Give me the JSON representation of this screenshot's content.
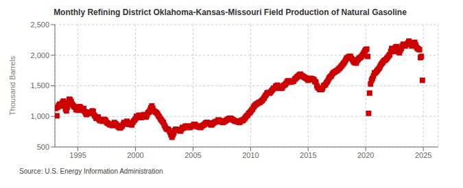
{
  "chart_data": {
    "type": "scatter",
    "title": "Monthly Refining District Oklahoma-Kansas-Missouri Field Production of Natural Gasoline",
    "y_label": "Thousand Barrels",
    "annotations": [
      "Source: U.S. Energy Information Administration"
    ],
    "color": "#cc0000",
    "marker": "square",
    "grid": true,
    "xlim": [
      1993.0,
      2026.3
    ],
    "xticks": [
      1995,
      2000,
      2005,
      2010,
      2015,
      2020,
      2025
    ],
    "ylim": [
      500,
      2500
    ],
    "yticks": [
      500,
      {
        "value": 1000,
        "label": "1,000"
      },
      {
        "value": 1500,
        "label": "1,500"
      },
      {
        "value": 2000,
        "label": "2,000"
      },
      {
        "value": 2500,
        "label": "2,500"
      }
    ],
    "x": [
      1993.08,
      1993.17,
      1993.25,
      1993.33,
      1993.42,
      1993.5,
      1993.58,
      1993.67,
      1993.75,
      1993.83,
      1993.92,
      1994.0,
      1994.08,
      1994.17,
      1994.25,
      1994.33,
      1994.42,
      1994.5,
      1994.58,
      1994.67,
      1994.75,
      1994.83,
      1994.92,
      1995.0,
      1995.08,
      1995.17,
      1995.25,
      1995.33,
      1995.42,
      1995.5,
      1995.58,
      1995.67,
      1995.75,
      1995.83,
      1995.92,
      1996.0,
      1996.08,
      1996.17,
      1996.25,
      1996.33,
      1996.42,
      1996.5,
      1996.58,
      1996.67,
      1996.75,
      1996.83,
      1996.92,
      1997.0,
      1997.08,
      1997.17,
      1997.25,
      1997.33,
      1997.42,
      1997.5,
      1997.58,
      1997.67,
      1997.75,
      1997.83,
      1997.92,
      1998.0,
      1998.08,
      1998.17,
      1998.25,
      1998.33,
      1998.42,
      1998.5,
      1998.58,
      1998.67,
      1998.75,
      1998.83,
      1998.92,
      1999.0,
      1999.08,
      1999.17,
      1999.25,
      1999.33,
      1999.42,
      1999.5,
      1999.58,
      1999.67,
      1999.75,
      1999.83,
      1999.92,
      2000.0,
      2000.08,
      2000.17,
      2000.25,
      2000.33,
      2000.42,
      2000.5,
      2000.58,
      2000.67,
      2000.75,
      2000.83,
      2000.92,
      2001.0,
      2001.08,
      2001.17,
      2001.25,
      2001.33,
      2001.42,
      2001.5,
      2001.58,
      2001.67,
      2001.75,
      2001.83,
      2001.92,
      2002.0,
      2002.08,
      2002.17,
      2002.25,
      2002.33,
      2002.42,
      2002.5,
      2002.58,
      2002.67,
      2002.75,
      2002.83,
      2002.92,
      2003.0,
      2003.08,
      2003.17,
      2003.25,
      2003.33,
      2003.42,
      2003.5,
      2003.58,
      2003.67,
      2003.75,
      2003.83,
      2003.92,
      2004.0,
      2004.08,
      2004.17,
      2004.25,
      2004.33,
      2004.42,
      2004.5,
      2004.58,
      2004.67,
      2004.75,
      2004.83,
      2004.92,
      2005.0,
      2005.08,
      2005.17,
      2005.25,
      2005.33,
      2005.42,
      2005.5,
      2005.58,
      2005.67,
      2005.75,
      2005.83,
      2005.92,
      2006.0,
      2006.08,
      2006.17,
      2006.25,
      2006.33,
      2006.42,
      2006.5,
      2006.58,
      2006.67,
      2006.75,
      2006.83,
      2006.92,
      2007.0,
      2007.08,
      2007.17,
      2007.25,
      2007.33,
      2007.42,
      2007.5,
      2007.58,
      2007.67,
      2007.75,
      2007.83,
      2007.92,
      2008.0,
      2008.08,
      2008.17,
      2008.25,
      2008.33,
      2008.42,
      2008.5,
      2008.58,
      2008.67,
      2008.75,
      2008.83,
      2008.92,
      2009.0,
      2009.08,
      2009.17,
      2009.25,
      2009.33,
      2009.42,
      2009.5,
      2009.58,
      2009.67,
      2009.75,
      2009.83,
      2009.92,
      2010.0,
      2010.08,
      2010.17,
      2010.25,
      2010.33,
      2010.42,
      2010.5,
      2010.58,
      2010.67,
      2010.75,
      2010.83,
      2010.92,
      2011.0,
      2011.08,
      2011.17,
      2011.25,
      2011.33,
      2011.42,
      2011.5,
      2011.58,
      2011.67,
      2011.75,
      2011.83,
      2011.92,
      2012.0,
      2012.08,
      2012.17,
      2012.25,
      2012.33,
      2012.42,
      2012.5,
      2012.58,
      2012.67,
      2012.75,
      2012.83,
      2012.92,
      2013.0,
      2013.08,
      2013.17,
      2013.25,
      2013.33,
      2013.42,
      2013.5,
      2013.58,
      2013.67,
      2013.75,
      2013.83,
      2013.92,
      2014.0,
      2014.08,
      2014.17,
      2014.25,
      2014.33,
      2014.42,
      2014.5,
      2014.58,
      2014.67,
      2014.75,
      2014.83,
      2014.92,
      2015.0,
      2015.08,
      2015.17,
      2015.25,
      2015.33,
      2015.42,
      2015.5,
      2015.58,
      2015.67,
      2015.75,
      2015.83,
      2015.92,
      2016.0,
      2016.08,
      2016.17,
      2016.25,
      2016.33,
      2016.42,
      2016.5,
      2016.58,
      2016.67,
      2016.75,
      2016.83,
      2016.92,
      2017.0,
      2017.08,
      2017.17,
      2017.25,
      2017.33,
      2017.42,
      2017.5,
      2017.58,
      2017.67,
      2017.75,
      2017.83,
      2017.92,
      2018.0,
      2018.08,
      2018.17,
      2018.25,
      2018.33,
      2018.42,
      2018.5,
      2018.58,
      2018.67,
      2018.75,
      2018.83,
      2018.92,
      2019.0,
      2019.08,
      2019.17,
      2019.25,
      2019.33,
      2019.42,
      2019.5,
      2019.58,
      2019.67,
      2019.75,
      2019.83,
      2019.92,
      2020.0,
      2020.08,
      2020.17,
      2020.25,
      2020.33,
      2020.42,
      2020.5,
      2020.58,
      2020.67,
      2020.75,
      2020.83,
      2020.92,
      2021.0,
      2021.08,
      2021.17,
      2021.25,
      2021.33,
      2021.42,
      2021.5,
      2021.58,
      2021.67,
      2021.75,
      2021.83,
      2021.92,
      2022.0,
      2022.08,
      2022.17,
      2022.25,
      2022.33,
      2022.42,
      2022.5,
      2022.58,
      2022.67,
      2022.75,
      2022.83,
      2022.92,
      2023.0,
      2023.08,
      2023.17,
      2023.25,
      2023.33,
      2023.42,
      2023.5,
      2023.58,
      2023.67,
      2023.75,
      2023.83,
      2023.92,
      2024.0,
      2024.08,
      2024.17,
      2024.25,
      2024.33,
      2024.42,
      2024.5,
      2024.58,
      2024.67,
      2024.75,
      2024.83,
      2024.92
    ],
    "values": [
      1130,
      1010,
      1150,
      1180,
      1200,
      1170,
      1200,
      1230,
      1250,
      1170,
      1120,
      1090,
      1150,
      1220,
      1280,
      1270,
      1240,
      1200,
      1180,
      1160,
      1150,
      1110,
      1130,
      1100,
      1150,
      1160,
      1140,
      1120,
      1100,
      1130,
      1080,
      1050,
      1030,
      1070,
      1050,
      1050,
      1060,
      1070,
      1090,
      1080,
      1020,
      1000,
      970,
      970,
      990,
      950,
      930,
      940,
      950,
      920,
      940,
      950,
      930,
      900,
      890,
      880,
      870,
      860,
      870,
      850,
      870,
      900,
      880,
      870,
      850,
      830,
      820,
      810,
      830,
      840,
      870,
      900,
      880,
      900,
      920,
      890,
      870,
      880,
      870,
      860,
      900,
      920,
      940,
      960,
      1000,
      980,
      1010,
      1020,
      990,
      980,
      990,
      1000,
      1030,
      1000,
      990,
      1020,
      1060,
      1070,
      1100,
      1140,
      1170,
      1130,
      1090,
      1080,
      1070,
      1060,
      1040,
      1010,
      990,
      960,
      940,
      920,
      900,
      860,
      830,
      800,
      790,
      790,
      770,
      740,
      700,
      660,
      700,
      730,
      770,
      790,
      780,
      770,
      770,
      780,
      760,
      790,
      820,
      810,
      820,
      840,
      840,
      840,
      830,
      820,
      820,
      840,
      840,
      850,
      870,
      870,
      850,
      840,
      830,
      840,
      820,
      820,
      840,
      850,
      860,
      870,
      890,
      900,
      900,
      890,
      890,
      870,
      860,
      870,
      890,
      900,
      910,
      910,
      920,
      940,
      940,
      930,
      920,
      910,
      900,
      910,
      920,
      930,
      940,
      950,
      960,
      970,
      970,
      960,
      950,
      940,
      930,
      920,
      920,
      920,
      910,
      900,
      910,
      930,
      940,
      930,
      950,
      970,
      990,
      1010,
      1020,
      1050,
      1060,
      1080,
      1100,
      1120,
      1150,
      1170,
      1190,
      1200,
      1210,
      1220,
      1230,
      1230,
      1250,
      1260,
      1280,
      1300,
      1330,
      1350,
      1380,
      1390,
      1380,
      1380,
      1400,
      1420,
      1440,
      1460,
      1460,
      1490,
      1500,
      1510,
      1480,
      1460,
      1460,
      1460,
      1470,
      1500,
      1510,
      1520,
      1540,
      1570,
      1580,
      1580,
      1560,
      1560,
      1570,
      1570,
      1580,
      1610,
      1620,
      1640,
      1650,
      1670,
      1680,
      1690,
      1670,
      1660,
      1650,
      1640,
      1630,
      1620,
      1610,
      1590,
      1600,
      1620,
      1620,
      1610,
      1610,
      1600,
      1570,
      1560,
      1500,
      1470,
      1460,
      1440,
      1440,
      1440,
      1460,
      1500,
      1510,
      1520,
      1550,
      1570,
      1600,
      1630,
      1650,
      1660,
      1690,
      1710,
      1720,
      1730,
      1740,
      1750,
      1760,
      1780,
      1790,
      1810,
      1830,
      1850,
      1870,
      1890,
      1920,
      1950,
      1960,
      1970,
      1980,
      1980,
      1950,
      1930,
      1900,
      1880,
      1880,
      1870,
      1910,
      1930,
      1950,
      1960,
      1970,
      1990,
      2010,
      2040,
      2070,
      2090,
      2100,
      1980,
      1050,
      1380,
      1530,
      1590,
      1620,
      1660,
      1710,
      1710,
      1730,
      1750,
      1770,
      1790,
      1820,
      1850,
      1870,
      1890,
      1910,
      1920,
      1930,
      1950,
      1970,
      1990,
      2010,
      2060,
      2110,
      2080,
      2060,
      2110,
      2130,
      2140,
      2090,
      2060,
      2040,
      2080,
      2110,
      2150,
      2180,
      2160,
      2150,
      2170,
      2180,
      2200,
      2230,
      2200,
      2180,
      2150,
      2170,
      2190,
      2210,
      2170,
      2130,
      2110,
      2100,
      2090,
      1960,
      1980,
      1590
    ]
  }
}
